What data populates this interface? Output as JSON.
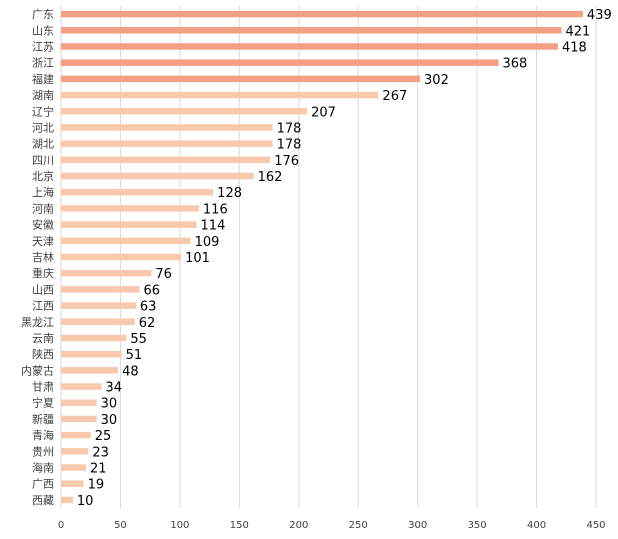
{
  "chart_data": {
    "type": "bar",
    "orientation": "horizontal",
    "categories": [
      "广东",
      "山东",
      "江苏",
      "浙江",
      "福建",
      "湖南",
      "辽宁",
      "河北",
      "湖北",
      "四川",
      "北京",
      "上海",
      "河南",
      "安徽",
      "天津",
      "吉林",
      "重庆",
      "山西",
      "江西",
      "黑龙江",
      "云南",
      "陕西",
      "内蒙古",
      "甘肃",
      "宁夏",
      "新疆",
      "青海",
      "贵州",
      "海南",
      "广西",
      "西藏"
    ],
    "values": [
      439,
      421,
      418,
      368,
      302,
      267,
      207,
      178,
      178,
      176,
      162,
      128,
      116,
      114,
      109,
      101,
      76,
      66,
      63,
      62,
      55,
      51,
      48,
      34,
      30,
      30,
      25,
      23,
      21,
      19,
      10
    ],
    "highlight_count": 5,
    "xlim": [
      0,
      450
    ],
    "xticks": [
      "0",
      "50",
      "100",
      "150",
      "200",
      "250",
      "300",
      "350",
      "400",
      "450"
    ],
    "grid": true,
    "title": "",
    "xlabel": "",
    "ylabel": "",
    "colors": {
      "highlight": "#f4a085",
      "normal": "#f9c9ae",
      "grid": "#d9d9d9"
    }
  }
}
